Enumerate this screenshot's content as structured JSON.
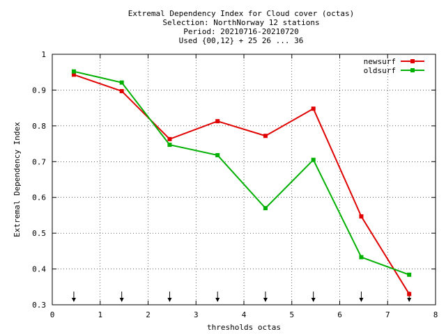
{
  "chart_data": {
    "type": "line",
    "title_lines": [
      "Extremal Dependency Index  for Cloud cover (octas)",
      "Selection: NorthNorway     12 stations",
      "Period: 20210716-20210720",
      "Used {00,12} + 25 26 ... 36"
    ],
    "xlabel": "thresholds octas",
    "ylabel": "Extremal Dependency Index",
    "xlim": [
      0,
      8
    ],
    "ylim": [
      0.3,
      1
    ],
    "xticks": [
      "0",
      "1",
      "2",
      "3",
      "4",
      "5",
      "6",
      "7",
      "8"
    ],
    "yticks": [
      "0.3",
      "0.4",
      "0.5",
      "0.6",
      "0.7",
      "0.8",
      "0.9",
      "1"
    ],
    "grid": true,
    "legend_position": "top-right",
    "x": [
      0.45,
      1.45,
      2.45,
      3.45,
      4.45,
      5.45,
      6.45,
      7.45
    ],
    "series": [
      {
        "name": "newsurf",
        "color": "#e00000",
        "values": [
          0.943,
          0.897,
          0.763,
          0.813,
          0.772,
          0.848,
          0.547,
          0.33
        ]
      },
      {
        "name": "oldsurf",
        "color": "#00b000",
        "values": [
          0.952,
          0.921,
          0.747,
          0.718,
          0.57,
          0.705,
          0.433,
          0.384
        ]
      }
    ],
    "arrow_markers_x": [
      0.45,
      1.45,
      2.45,
      3.45,
      4.45,
      5.45,
      6.45,
      7.45
    ]
  }
}
